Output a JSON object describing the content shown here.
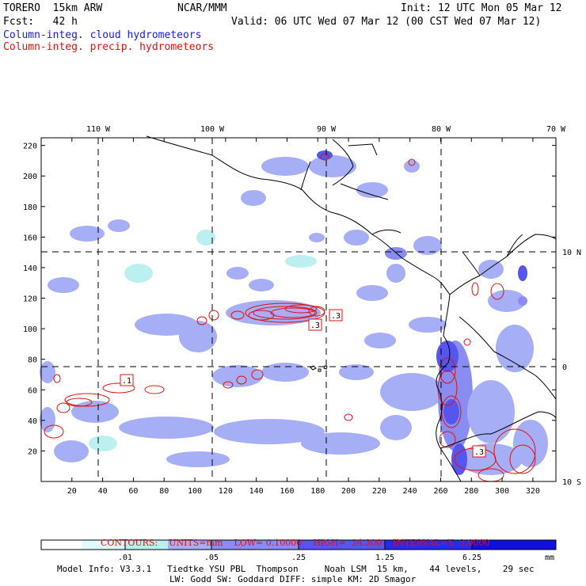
{
  "header": {
    "model": "TORERO  15km ARW",
    "org": "NCAR/MMM",
    "init": "Init: 12 UTC Mon 05 Mar 12",
    "fcst": "Fcst:   42 h",
    "valid": "Valid: 06 UTC Wed 07 Mar 12 (00 CST Wed 07 Mar 12)",
    "field_cloud": "Column-integ. cloud hydrometeors",
    "field_precip": "Column-integ. precip. hydrometeors"
  },
  "colors": {
    "cloud_label": "#1a1adc",
    "precip_label": "#e01010",
    "shade_1": "#e0fbfb",
    "shade_2": "#bcefef",
    "shade_3": "#a6aef6",
    "shade_4": "#8a8cf2",
    "shade_5": "#5656ee",
    "shade_6": "#2a2ae6",
    "shade_7": "#1010dc"
  },
  "map": {
    "x_ticks": [
      "20",
      "40",
      "60",
      "80",
      "100",
      "120",
      "140",
      "160",
      "180",
      "200",
      "220",
      "240",
      "260",
      "280",
      "300",
      "320"
    ],
    "y_ticks": [
      "20",
      "40",
      "60",
      "80",
      "100",
      "120",
      "140",
      "160",
      "180",
      "200",
      "220"
    ],
    "lon_labels": [
      "110 W",
      "100 W",
      "90 W",
      "80 W",
      "70 W"
    ],
    "lat_labels": [
      "10 N",
      "0",
      "10 S"
    ],
    "box_labels": [
      ".1",
      ".3",
      ".3",
      ".3"
    ],
    "x_range": [
      0,
      335
    ],
    "y_range": [
      0,
      225
    ]
  },
  "contours": {
    "label": "CONTOURS:",
    "units": "UNITS=mm",
    "low": "LOW= 0.10000",
    "high": "HIGH=  24.300",
    "interval": "INTERVAL=X  3.0000"
  },
  "colorbar": {
    "labels": [
      ".01",
      ".05",
      ".25",
      "1.25",
      "6.25"
    ],
    "unit": "mm"
  },
  "footer": {
    "line1": "Model Info: V3.3.1   Tiedtke YSU PBL  Thompson     Noah LSM  15 km,    44 levels,    29 sec",
    "line2": "LW: Godd SW: Goddard DIFF: simple KM: 2D Smagor"
  }
}
